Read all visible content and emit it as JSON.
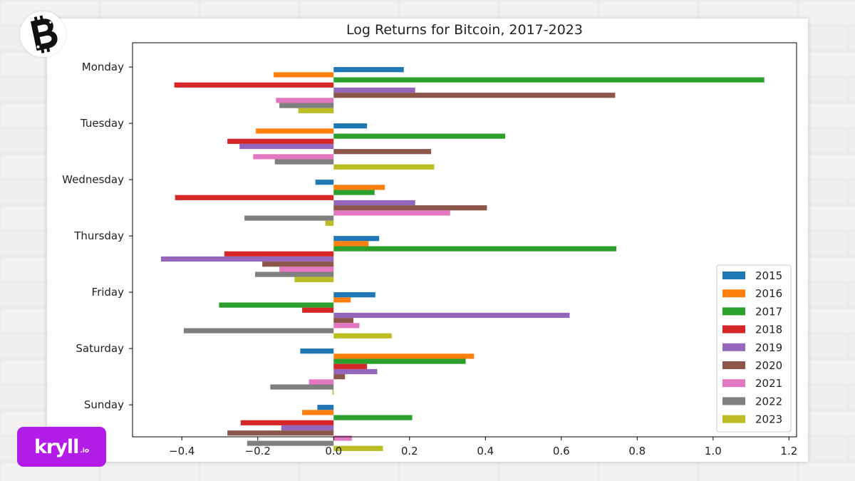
{
  "branding": {
    "top_logo": "bitcoin-b-sticker",
    "bottom_logo_main": "kryll",
    "bottom_logo_suffix": ".io",
    "bottom_logo_color": "#b31be8"
  },
  "chart_data": {
    "type": "bar",
    "orientation": "horizontal",
    "title": "Log Returns for Bitcoin, 2017-2023",
    "xlabel": "",
    "ylabel": "",
    "xlim": [
      -0.53,
      1.22
    ],
    "xticks": [
      -0.4,
      -0.2,
      0.0,
      0.2,
      0.4,
      0.6,
      0.8,
      1.0,
      1.2
    ],
    "xtick_labels": [
      "−0.4",
      "−0.2",
      "0.0",
      "0.2",
      "0.4",
      "0.6",
      "0.8",
      "1.0",
      "1.2"
    ],
    "grid": false,
    "legend_position": "lower-right",
    "categories": [
      "Monday",
      "Tuesday",
      "Wednesday",
      "Thursday",
      "Friday",
      "Saturday",
      "Sunday"
    ],
    "series": [
      {
        "name": "2015",
        "color": "#1f77b4",
        "values": [
          0.185,
          0.088,
          -0.048,
          0.12,
          0.11,
          -0.088,
          -0.043
        ]
      },
      {
        "name": "2016",
        "color": "#ff7f0e",
        "values": [
          -0.158,
          -0.205,
          0.135,
          0.092,
          0.045,
          0.37,
          -0.083
        ]
      },
      {
        "name": "2017",
        "color": "#2ca02c",
        "values": [
          1.135,
          0.452,
          0.108,
          0.745,
          -0.302,
          0.348,
          0.207
        ]
      },
      {
        "name": "2018",
        "color": "#d62728",
        "values": [
          -0.42,
          -0.28,
          -0.418,
          -0.288,
          -0.083,
          0.088,
          -0.245
        ]
      },
      {
        "name": "2019",
        "color": "#9467bd",
        "values": [
          0.215,
          -0.248,
          0.215,
          -0.455,
          0.622,
          0.115,
          -0.138
        ]
      },
      {
        "name": "2020",
        "color": "#8c564b",
        "values": [
          0.742,
          0.257,
          0.404,
          -0.188,
          0.052,
          0.03,
          -0.28
        ]
      },
      {
        "name": "2021",
        "color": "#e377c2",
        "values": [
          -0.152,
          -0.212,
          0.307,
          -0.143,
          0.068,
          -0.065,
          0.048
        ]
      },
      {
        "name": "2022",
        "color": "#7f7f7f",
        "values": [
          -0.143,
          -0.155,
          -0.235,
          -0.207,
          -0.395,
          -0.167,
          -0.228
        ]
      },
      {
        "name": "2023",
        "color": "#bcbd22",
        "values": [
          -0.093,
          0.265,
          -0.022,
          -0.103,
          0.153,
          -0.003,
          0.13
        ]
      }
    ]
  }
}
